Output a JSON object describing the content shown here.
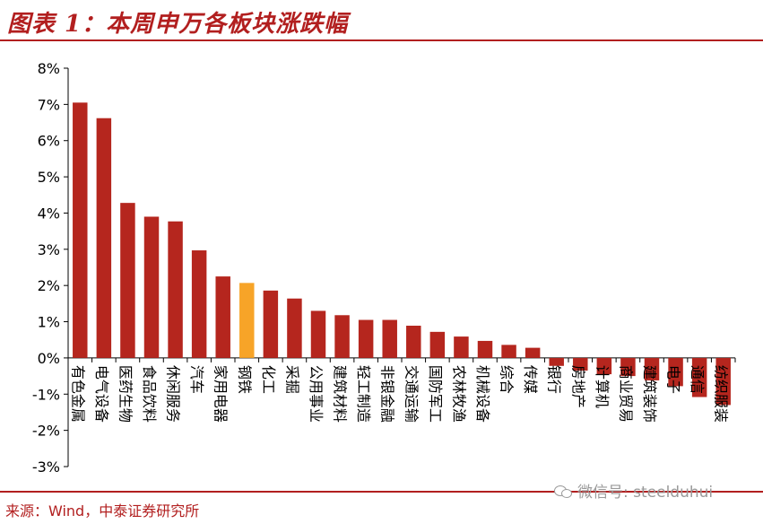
{
  "title": "图表 1：本周申万各板块涨跌幅",
  "source": "来源：Wind，中泰证券研究所",
  "watermark": "微信号: steelduhui",
  "colors": {
    "bar": "#B5261E",
    "highlight": "#F7A428",
    "accent": "#B21F1F"
  },
  "chart_data": {
    "type": "bar",
    "y_unit": "%",
    "ylim": [
      -3,
      8
    ],
    "yticks": [
      8,
      7,
      6,
      5,
      4,
      3,
      2,
      1,
      0,
      -1,
      -2,
      -3
    ],
    "ytick_labels": [
      "8%",
      "7%",
      "6%",
      "5%",
      "4%",
      "3%",
      "2%",
      "1%",
      "0%",
      "-1%",
      "-2%",
      "-3%"
    ],
    "grid": false,
    "legend": "none",
    "highlight_category": "钢铁",
    "categories": [
      "有色金属",
      "电气设备",
      "医药生物",
      "食品饮料",
      "休闲服务",
      "汽车",
      "家用电器",
      "钢铁",
      "化工",
      "采掘",
      "公用事业",
      "建筑材料",
      "轻工制造",
      "非银金融",
      "交通运输",
      "国防军工",
      "农林牧渔",
      "机械设备",
      "综合",
      "传媒",
      "银行",
      "房地产",
      "计算机",
      "商业贸易",
      "建筑装饰",
      "电子",
      "通信",
      "纺织服装"
    ],
    "values": [
      7.05,
      6.62,
      4.28,
      3.9,
      3.77,
      2.97,
      2.25,
      2.07,
      1.86,
      1.64,
      1.3,
      1.18,
      1.05,
      1.05,
      0.89,
      0.72,
      0.59,
      0.47,
      0.36,
      0.28,
      -0.22,
      -0.35,
      -0.45,
      -0.5,
      -0.62,
      -0.78,
      -1.08,
      -1.3
    ]
  }
}
